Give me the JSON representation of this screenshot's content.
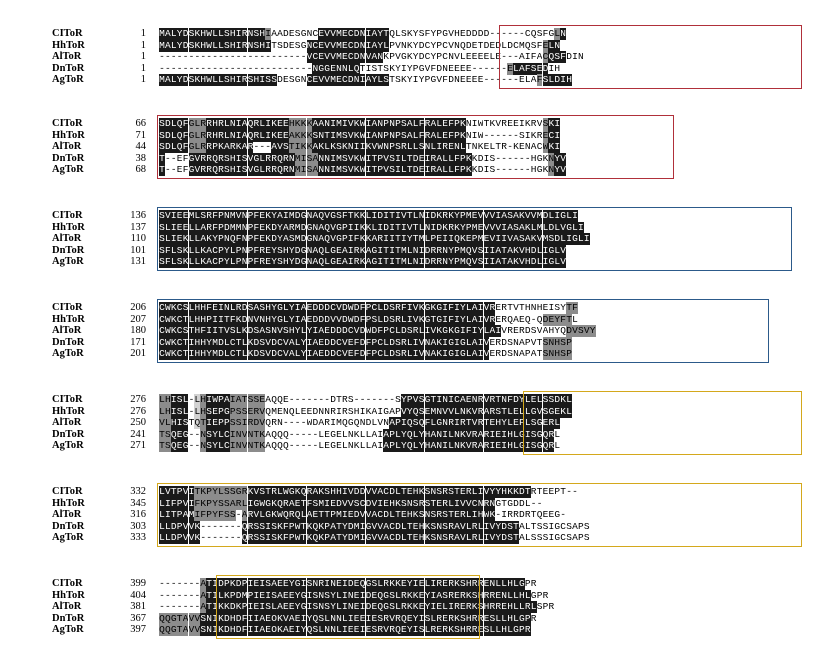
{
  "colors": {
    "identical_bg": "#1a1a1a",
    "identical_fg": "#ffffff",
    "similar_bg": "#8c8c8c",
    "similar_fg": "#000000",
    "weak_bg": "#d2d2d2",
    "weak_fg": "#000000",
    "plain_fg": "#000000",
    "box_red": "#b0303a",
    "box_blue": "#2c5a8a",
    "box_yellow": "#d4a81c"
  },
  "blocks": [
    {
      "rows": [
        {
          "name": "CIToR",
          "start": "1",
          "seq": "MALYDSKHWLLSHIRNSHIAADESGNCEVVMECDNIAYTQLSKYSFYPGVHEDDDD------CQSFGLN",
          "shade": "333333333333333333200000000333333333333000000000000000000000000000023333"
        },
        {
          "name": "HhToR",
          "start": "1",
          "seq": "MALYDSKHWLLSHIRNSHITSDESGNCEVVMECDNIAYLPVNKYDCYPCVNQDETDEDLDCMQSFELN",
          "shade": "33333333333333333330000003333333333333300000000000000000000000000233333"
        },
        {
          "name": "AlToR",
          "start": "1",
          "seq": "-------------------------VCEVVMECDNVANKPVGKYDCYPCNVLEEEELE---AIFACQSFDIN",
          "shade": "000000000000000000000000033333333333330000000000000000000000000002333"
        },
        {
          "name": "DnToR",
          "start": "1",
          "seq": "--------------------------NGGENNLQTISTSKYIYPGVFDNEEEE------ELAFSEDIH",
          "shade": "000000000000000000000000003333333300000000000000000000000002333333"
        },
        {
          "name": "AgToR",
          "start": "1",
          "seq": "MALYDSKHWLLSHIRSHISSDESGNCEVVMECDNIAYLSTSKYIYPGVFDNEEEE------ELAFSLDIH",
          "shade": "33333333333333333333000003333333333333300000000000000000000000002333333"
        }
      ]
    },
    {
      "rows": [
        {
          "name": "CIToR",
          "start": "66",
          "seq": "SDLQFGLRRHRLNIAQRLIKEEHKKKAANIMIVKWIANPNPSALFRALEFPKNIWTKVREEIKRVSKI",
          "shade": "333332223333333333333322223333333333333333333333333300000000000002330"
        },
        {
          "name": "HhToR",
          "start": "71",
          "seq": "SDLQFGLRRHRLNIAQRLIKEEAKKKSNTIMSVKWIANPNPSALFRALEFPKNIW------SIKRECI",
          "shade": "333332223333333333333322223333333333333333333333333300000000000002330"
        },
        {
          "name": "AlToR",
          "start": "44",
          "seq": "SDLQFGLRRPKARKAR---AVSTIKKAKLKSKNIIKVWNPSRLLSNLIRENLTNKELTR-KENACWKI",
          "shade": "333332223333333333333322223333333333333333333333333300000000000002330"
        },
        {
          "name": "DnToR",
          "start": "38",
          "seq": "T--EFGVRRQRSHISVGLRRQRNMISANNIMSVKWITPVSILTDEIRALLFPKKDIS------HGKNYV",
          "shade": "3000033333333333333333322223333333333333333333333333300000000000002330"
        },
        {
          "name": "AgToR",
          "start": "68",
          "seq": "T--EFGVRRQRSHISVGLRRQRNMISANNIMSVKWITPVSILTDEIRALLFPKKDIS------HGKNYV",
          "shade": "3000033333333333333333322223333333333333333333333333300000000000002330"
        }
      ]
    },
    {
      "rows": [
        {
          "name": "CIToR",
          "start": "136",
          "seq": "SVIEEMLSRFPNMVNPFEKYAIMDGNAQVGSFTKKLIDITIVTLNIDKRKYPMEVVVIASAKVVMDLIGLI",
          "shade": "33333333333333333333333333333333333333333333333333333333333333333333333"
        },
        {
          "name": "HhToR",
          "start": "137",
          "seq": "SLIEELLARFPDMMNPFEKDYARMDGNAQVGPIIKKLIDITIVTLNIDKRKYPMEVVVIASAKLMLDLVGLI",
          "shade": "333333333333333333333333333333333333333333333333333333333333333333333333"
        },
        {
          "name": "AlToR",
          "start": "110",
          "seq": "SLIEKLLAKYPNQFNPFEKDYASMDGNAQVGPIFKKARIITIYTMLPEIIQKEPMEVIIVASAKVMSDLIGLI",
          "shade": "3333333333333333333333333333333333333333333333333333333333333333333333333"
        },
        {
          "name": "DnToR",
          "start": "101",
          "seq": "SFLSKLLKACPYLPNPFREYSHYDGNAQLGEAIRKAGITITMLNIDRRNYPMQVSIIATAKVHDLIGLV",
          "shade": "3333333333333333333333333333333333333333333333333333333333333333333333"
        },
        {
          "name": "AgToR",
          "start": "131",
          "seq": "SFLSKLLKACPYLPNPFREYSHYDGNAQLGEAIRKAGITITMLNIDRRNYPMQVSIIATAKVHDLIGLV",
          "shade": "3333333333333333333333333333333333333333333333333333333333333333333333"
        }
      ]
    },
    {
      "rows": [
        {
          "name": "CIToR",
          "start": "206",
          "seq": "CWKCSLHHFEINLRDSASHYGLYIAEDDDCVDWDFPCLDSRFIVKGKGIFIYLAIVRERTVTHNHEISYTF",
          "shade": "33333333333333333333333333333333333333333333333333333333300000000000022222"
        },
        {
          "name": "HhToR",
          "start": "207",
          "seq": "CWKCTLHHPIITFKDNVNHYGLYIAEDDDVVDWDFPSLDSRLIVKGTGIFIYLAIVRERQAEQ-QDEYFTL",
          "shade": "3333333333333333333333333333333333333333333333333333333330000000022222"
        },
        {
          "name": "AlToR",
          "start": "180",
          "seq": "CWKCSTHFIITVSLKDSASNVSHYLYIAEDDDCVDWDFPCLDSRLIVKGKGIFIYLAIVRERDSVAHYQDVSVY",
          "shade": "333333333333333333333333333333333333333333333333333333333300000000000222222"
        },
        {
          "name": "DnToR",
          "start": "171",
          "seq": "CWKCTIHHYMDLCTLKDSVDCVALYIAEDDCVEFDFPCLDSRLIVNAKIGIGLAIVERDSNAPVTSNHSP",
          "shade": "33333333333333333333333333333333333333333333333333333333000000000222222"
        },
        {
          "name": "AgToR",
          "start": "201",
          "seq": "CWKCTIHHYMDLCTLKDSVDCVALYIAEDDCVEFDFPCLDSRLIVNAKIGIGLAIVERDSNAPATSNHSP",
          "shade": "33333333333333333333333333333333333333333333333333333333000000000222222"
        }
      ]
    },
    {
      "rows": [
        {
          "name": "CIToR",
          "start": "276",
          "seq": "LHISL-LHIWPAIATSSEAQQE-------DTRS-------SYPVSGTINICAENRVRTNFDYLELSSDKL",
          "shade": "2233301233332222220000000000000000000000033333333333333333333333333333"
        },
        {
          "name": "HhToR",
          "start": "276",
          "seq": "LHISL-LHSEPGPSSERVQMENQLEEDNNRIRSHIKAIGAPVYQSEMNVVLNKVRARSTLELLGVSGEKL",
          "shade": "2233301233332222220000000000000000000000033333333333333333333333333333"
        },
        {
          "name": "AlToR",
          "start": "250",
          "seq": "VLHISTQTIEPPSSIRDVQRN----WDARIMQGQNDLVNAPIQSQFLGNRIRTVRTEHYLEFLSGERL",
          "shade": "22333012333322222200000000000000000000033333333333333333333333333333"
        },
        {
          "name": "DnToR",
          "start": "241",
          "seq": "TSQEG--NSYLCINVNTKAQQQ-----LEGELNKLLAIAPLYQLYHANILNKVRARIEIHLGISGQRL",
          "shade": "2233301233332222220000000000000000000033333333333333333333333333333"
        },
        {
          "name": "AgToR",
          "start": "271",
          "seq": "TSQEG--NSYLCINVNTKAQQQ-----LEGELNKLLAIAPLYQLYHANILNKVRARIEIHLGISGQRL",
          "shade": "2233301233332222220000000000000000000033333333333333333333333333333"
        }
      ]
    },
    {
      "rows": [
        {
          "name": "CIToR",
          "start": "332",
          "seq": "LVTPVITKPYLSSGRKVSTRLWGKQRAKSHHIVDDVVACDLTEHKSNSRSTERLIVYYHKKDTRTEEPT--",
          "shade": "333333222222222333333333333333333333333333333333333333333333333000000000"
        },
        {
          "name": "HhToR",
          "start": "345",
          "seq": "LIFPVIFKPYSSARLIGWGKQRAETFSMIEDVVSCDVIEHKSNSRSTERLIVVCNRNGTGDDL--",
          "shade": "33333322222222233333333333333333333333333333333333333333300000000"
        },
        {
          "name": "AlToR",
          "start": "316",
          "seq": "LITPAMIFPYFSS-ARVLGKWQRQLAETTPMIEDVVACDLTEHKSNSRSTERLIHWK-IRRDRTQEEG-",
          "shade": "33333322222222233333333333333333333333333333333333333333300000000000"
        },
        {
          "name": "DnToR",
          "start": "303",
          "seq": "LLDPVVK-------QRSSISKFPWTKQKPATYDMIGVVACDLTEHKSNSRAVLRLIVYDSTALTSSIGCSAPS",
          "shade": "3333333000000033333333333333333333333333333333333333333333333000000000000"
        },
        {
          "name": "AgToR",
          "start": "333",
          "seq": "LLDPVVK-------QRSSISKFPWTKQKPATYDMIGVVACDLTEHKSNSRAVLRLIVYDSTALSSSIGCSAPS",
          "shade": "3333333000000033333333333333333333333333333333333333333333333000000000000"
        }
      ]
    },
    {
      "rows": [
        {
          "name": "CIToR",
          "start": "399",
          "seq": "-------ATIDPKDPIEISAEEYGISNRINEIDEQGSLRKKEYIELIRERKSHRRENLLHLGPR",
          "shade": "00000002333333333333333333333333333333333333333333333333333333"
        },
        {
          "name": "HhToR",
          "start": "404",
          "seq": "-------ATILKPDMPIEISAEEYGISNSYLINEIDEQGSLRKKEYIASRERKSHRRENLLHLGPR",
          "shade": "000000023333333333333333333333333333333333333333333333333333333"
        },
        {
          "name": "AlToR",
          "start": "381",
          "seq": "-------ATIKKDKPIEISLAEEYGISNSYLINEIDEQGSLRKKEYIELIRERKSHRREHLLRLSPR",
          "shade": "0000000233333333333333333333333333333333333333333333333333333333"
        },
        {
          "name": "DnToR",
          "start": "367",
          "seq": "QQGTAVVSNIKDHDFIIAEOKVAEIYQSLNNLIEEIESRVRQEYISLRERKSHRRESLLHLGPR",
          "shade": "222222233333333333333333333333333333333333333333333333333333333"
        },
        {
          "name": "AgToR",
          "start": "397",
          "seq": "QQGTAVVSNIKDHDFIIAEOKAEIYQSLNNLIEEIESRVRQEYISLRERKSHRRESLLHLGPR",
          "shade": "222222233333333333333333333333333333333333333333333333333333333"
        }
      ]
    }
  ],
  "domain_boxes": [
    {
      "block": 0,
      "color": "red",
      "from": 58,
      "to": 109
    },
    {
      "block": 1,
      "color": "red",
      "from": 0,
      "to": 87
    },
    {
      "block": 2,
      "color": "blue",
      "from": 0,
      "to": 107
    },
    {
      "block": 3,
      "color": "blue",
      "from": 0,
      "to": 103
    },
    {
      "block": 4,
      "color": "yellow",
      "from": 62,
      "to": 109
    },
    {
      "block": 5,
      "color": "yellow",
      "from": 0,
      "to": 109
    },
    {
      "block": 6,
      "color": "yellow",
      "from": 10,
      "to": 54
    }
  ]
}
